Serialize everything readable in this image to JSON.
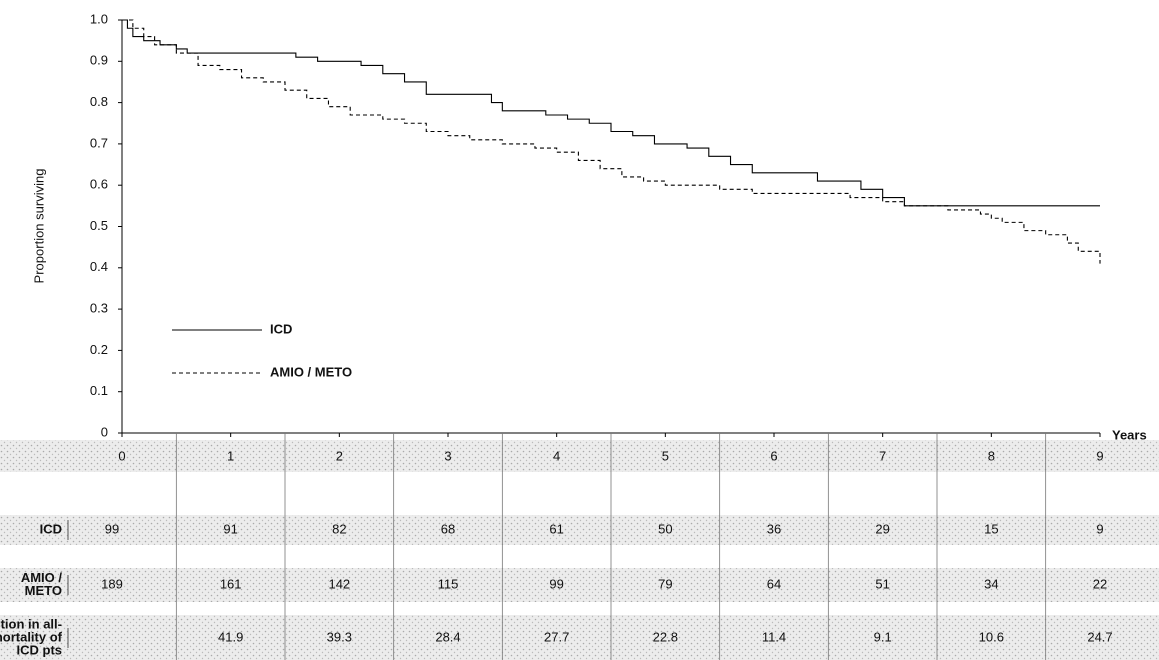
{
  "chart_data": {
    "type": "line",
    "step": "post",
    "ylabel": "Proportion surviving",
    "xlabel": "Years",
    "xlim": [
      0,
      9
    ],
    "ylim": [
      0,
      1
    ],
    "xticks": [
      0,
      1,
      2,
      3,
      4,
      5,
      6,
      7,
      8,
      9
    ],
    "yticks": [
      0,
      0.1,
      0.2,
      0.3,
      0.4,
      0.5,
      0.6,
      0.7,
      0.8,
      0.9,
      {
        "value": 1,
        "label": "1.0"
      }
    ],
    "series": [
      {
        "name": "ICD",
        "color": "#000000",
        "dash": false,
        "x": [
          0,
          0.05,
          0.1,
          0.2,
          0.35,
          0.5,
          0.6,
          1.6,
          1.8,
          2.2,
          2.4,
          2.6,
          2.8,
          3.4,
          3.5,
          3.9,
          4.1,
          4.3,
          4.5,
          4.7,
          4.9,
          5.2,
          5.4,
          5.6,
          5.8,
          6.4,
          6.8,
          7.0,
          7.2,
          9.0
        ],
        "values": [
          1.0,
          0.98,
          0.96,
          0.95,
          0.94,
          0.93,
          0.92,
          0.91,
          0.9,
          0.89,
          0.87,
          0.85,
          0.82,
          0.8,
          0.78,
          0.77,
          0.76,
          0.75,
          0.73,
          0.72,
          0.7,
          0.69,
          0.67,
          0.65,
          0.63,
          0.61,
          0.59,
          0.57,
          0.55,
          0.55
        ]
      },
      {
        "name": "AMIO / METO",
        "color": "#000000",
        "dash": true,
        "x": [
          0,
          0.1,
          0.2,
          0.3,
          0.5,
          0.7,
          0.9,
          1.1,
          1.3,
          1.5,
          1.7,
          1.9,
          2.1,
          2.4,
          2.6,
          2.8,
          3.0,
          3.2,
          3.5,
          3.8,
          4.0,
          4.2,
          4.4,
          4.6,
          4.8,
          5.0,
          5.5,
          5.8,
          6.7,
          7.0,
          7.2,
          7.6,
          7.9,
          8.0,
          8.1,
          8.3,
          8.5,
          8.7,
          8.8,
          9.0
        ],
        "values": [
          1.0,
          0.98,
          0.96,
          0.94,
          0.92,
          0.89,
          0.88,
          0.86,
          0.85,
          0.83,
          0.81,
          0.79,
          0.77,
          0.76,
          0.75,
          0.73,
          0.72,
          0.71,
          0.7,
          0.69,
          0.68,
          0.66,
          0.64,
          0.62,
          0.61,
          0.6,
          0.59,
          0.58,
          0.57,
          0.56,
          0.55,
          0.54,
          0.53,
          0.52,
          0.51,
          0.49,
          0.48,
          0.46,
          0.44,
          0.41
        ]
      }
    ]
  },
  "table": {
    "rows": [
      {
        "label": [
          "ICD"
        ],
        "values": [
          99,
          91,
          82,
          68,
          61,
          50,
          36,
          29,
          15,
          9
        ]
      },
      {
        "label": [
          "AMIO /",
          "METO"
        ],
        "values": [
          189,
          161,
          142,
          115,
          99,
          79,
          64,
          51,
          34,
          22
        ]
      },
      {
        "label": [
          "% reduction in all-",
          "cause mortality of",
          "ICD pts"
        ],
        "values": [
          null,
          41.9,
          39.3,
          28.4,
          27.7,
          22.8,
          11.4,
          9.1,
          10.6,
          24.7
        ]
      }
    ]
  }
}
